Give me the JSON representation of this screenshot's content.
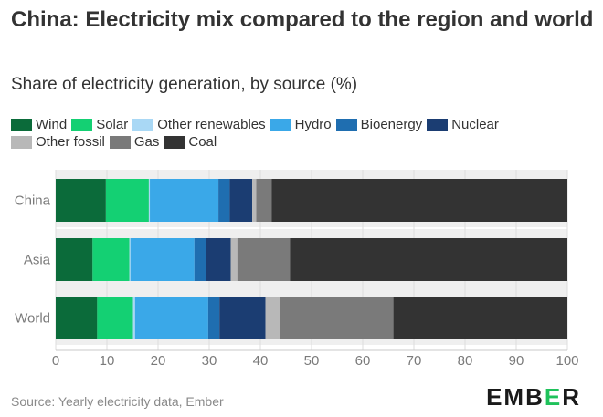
{
  "header": {
    "title": "China: Electricity mix compared to the region and world",
    "subtitle": "Share of electricity generation, by source (%)"
  },
  "footer": {
    "source": "Source: Yearly electricity data, Ember",
    "logo_prefix": "EMB",
    "logo_accent": "E",
    "logo_suffix": "R"
  },
  "chart_data": {
    "type": "bar",
    "orientation": "horizontal",
    "stacked": true,
    "categories": [
      "China",
      "Asia",
      "World"
    ],
    "series": [
      {
        "name": "Wind",
        "color": "#0b6b3a",
        "values": [
          9.8,
          7.2,
          8.1
        ]
      },
      {
        "name": "Solar",
        "color": "#14d073",
        "values": [
          8.4,
          7.2,
          7.0
        ]
      },
      {
        "name": "Other renewables",
        "color": "#a9d8f5",
        "values": [
          0.2,
          0.2,
          0.4
        ]
      },
      {
        "name": "Hydro",
        "color": "#3aa8e8",
        "values": [
          13.4,
          12.5,
          14.3
        ]
      },
      {
        "name": "Bioenergy",
        "color": "#1f6eb0",
        "values": [
          2.2,
          2.2,
          2.2
        ]
      },
      {
        "name": "Nuclear",
        "color": "#1b3d72",
        "values": [
          4.4,
          4.9,
          9.0
        ]
      },
      {
        "name": "Other fossil",
        "color": "#b8b8b8",
        "values": [
          0.8,
          1.3,
          2.9
        ]
      },
      {
        "name": "Gas",
        "color": "#7a7a7a",
        "values": [
          3.0,
          10.3,
          22.1
        ]
      },
      {
        "name": "Coal",
        "color": "#333333",
        "values": [
          57.8,
          54.2,
          34.0
        ]
      }
    ],
    "xlim": [
      0,
      100
    ],
    "xticks": [
      0,
      10,
      20,
      30,
      40,
      50,
      60,
      70,
      80,
      90,
      100
    ],
    "grid": true,
    "legend_position": "top"
  }
}
